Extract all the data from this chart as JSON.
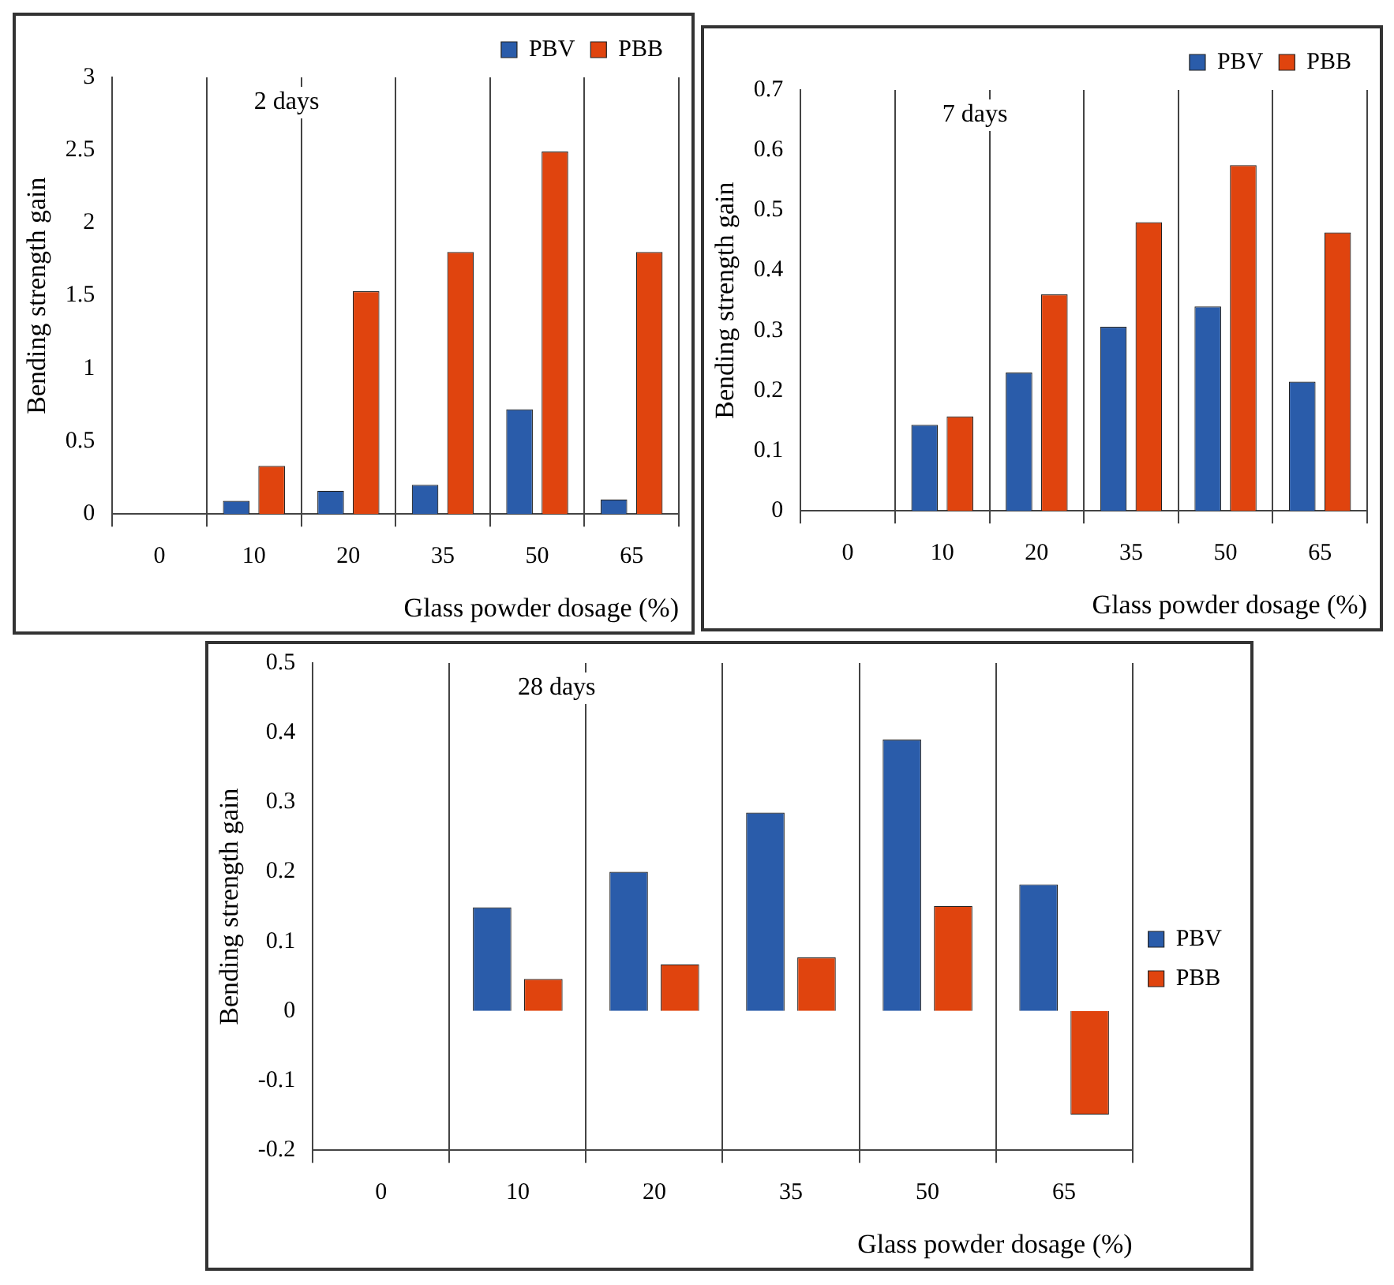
{
  "chart_data": [
    {
      "type": "bar",
      "categories": [
        "0",
        "10",
        "20",
        "35",
        "50",
        "65"
      ],
      "ylabel": "Bending strength gain",
      "xlabel": "Glass powder dosage (%)",
      "annotations": [
        "2 days"
      ],
      "ylim": [
        0,
        3
      ],
      "yticks": [
        0,
        0.5,
        1,
        1.5,
        2,
        2.5,
        3
      ],
      "grid": "x",
      "legend": "top right",
      "series": [
        {
          "name": "PBV",
          "color": "#2a5caa",
          "values": [
            0,
            0.09,
            0.16,
            0.2,
            0.72,
            0.1
          ]
        },
        {
          "name": "PBB",
          "color": "#e0440e",
          "values": [
            0,
            0.33,
            1.53,
            1.8,
            2.49,
            1.8
          ]
        }
      ]
    },
    {
      "type": "bar",
      "categories": [
        "0",
        "10",
        "20",
        "35",
        "50",
        "65"
      ],
      "ylabel": "Bending strength gain",
      "xlabel": "Glass powder dosage (%)",
      "annotations": [
        "7 days"
      ],
      "ylim": [
        0,
        0.7
      ],
      "yticks": [
        0,
        0.1,
        0.2,
        0.3,
        0.4,
        0.5,
        0.6,
        0.7
      ],
      "grid": "x",
      "legend": "top right",
      "series": [
        {
          "name": "PBV",
          "color": "#2a5caa",
          "values": [
            0,
            0.143,
            0.23,
            0.306,
            0.34,
            0.215
          ]
        },
        {
          "name": "PBB",
          "color": "#e0440e",
          "values": [
            0,
            0.157,
            0.36,
            0.48,
            0.575,
            0.463
          ]
        }
      ]
    },
    {
      "type": "bar",
      "categories": [
        "0",
        "10",
        "20",
        "35",
        "50",
        "65"
      ],
      "ylabel": "Bending strength gain",
      "xlabel": "Glass powder dosage (%)",
      "annotations": [
        "28 days"
      ],
      "ylim": [
        -0.2,
        0.5
      ],
      "yticks": [
        -0.2,
        -0.1,
        0,
        0.1,
        0.2,
        0.3,
        0.4,
        0.5
      ],
      "grid": "x",
      "legend": "right",
      "series": [
        {
          "name": "PBV",
          "color": "#2a5caa",
          "values": [
            0,
            0.149,
            0.2,
            0.285,
            0.39,
            0.182
          ]
        },
        {
          "name": "PBB",
          "color": "#e0440e",
          "values": [
            0,
            0.046,
            0.067,
            0.077,
            0.151,
            -0.149
          ]
        }
      ]
    }
  ]
}
